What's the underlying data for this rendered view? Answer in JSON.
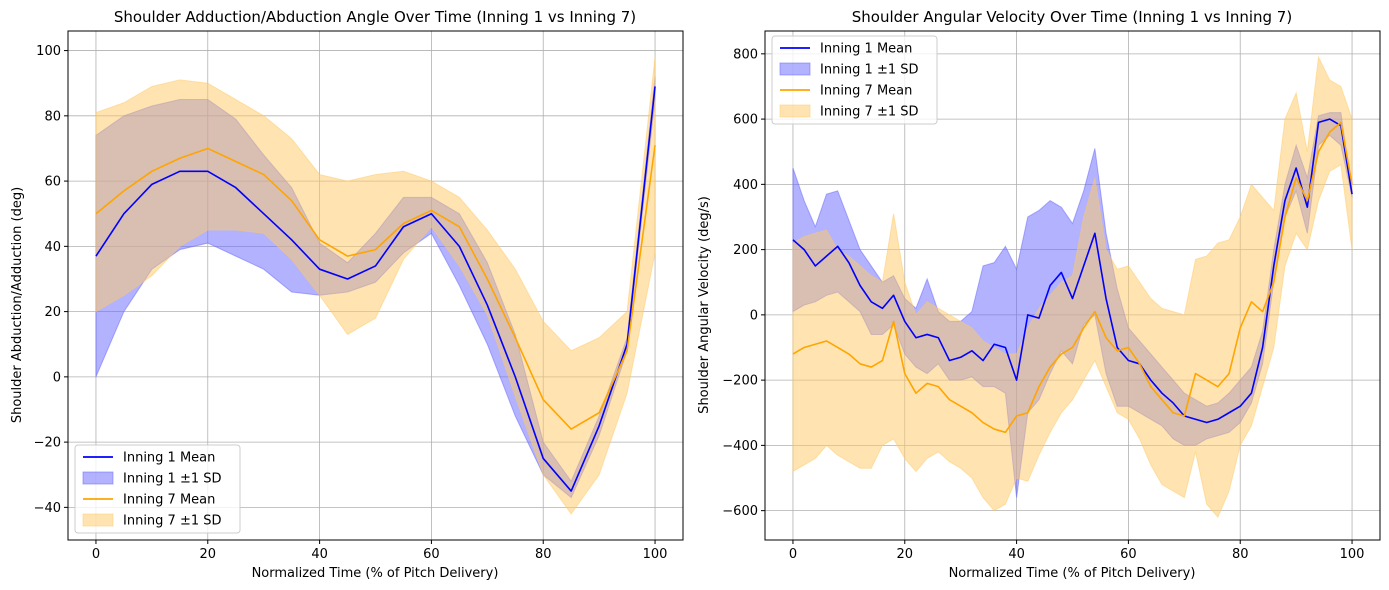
{
  "chart_data": [
    {
      "type": "line",
      "title": "Shoulder Adduction/Abduction Angle Over Time (Inning 1 vs Inning 7)",
      "xlabel": "Normalized Time (% of Pitch Delivery)",
      "ylabel": "Shoulder Abduction/Adduction (deg)",
      "xlim": [
        -5,
        105
      ],
      "ylim": [
        -50,
        106
      ],
      "xticks": [
        0,
        20,
        40,
        60,
        80,
        100
      ],
      "yticks": [
        -40,
        -20,
        0,
        20,
        40,
        60,
        80,
        100
      ],
      "grid": true,
      "legend_position": "lower left",
      "x": [
        0,
        5,
        10,
        15,
        20,
        25,
        30,
        35,
        40,
        45,
        50,
        55,
        60,
        65,
        70,
        75,
        80,
        85,
        90,
        95,
        100
      ],
      "series": [
        {
          "name": "Inning 1 Mean",
          "color": "#0000ff",
          "kind": "line",
          "values": [
            37,
            50,
            59,
            63,
            63,
            58,
            50,
            42,
            33,
            30,
            34,
            46,
            50,
            40,
            22,
            0,
            -25,
            -35,
            -15,
            10,
            89
          ]
        },
        {
          "name": "Inning 1 ±1 SD",
          "color": "#6666ff",
          "kind": "band",
          "lower": [
            0,
            20,
            33,
            39,
            41,
            37,
            33,
            26,
            25,
            26,
            29,
            38,
            44,
            28,
            10,
            -12,
            -30,
            -37,
            -18,
            8,
            85
          ],
          "upper": [
            74,
            80,
            83,
            85,
            85,
            79,
            68,
            58,
            41,
            35,
            44,
            55,
            55,
            50,
            35,
            13,
            -20,
            -32,
            -12,
            12,
            92
          ]
        },
        {
          "name": "Inning 7 Mean",
          "color": "#ffa500",
          "kind": "line",
          "values": [
            50,
            57,
            63,
            67,
            70,
            66,
            62,
            54,
            42,
            37,
            39,
            47,
            51,
            46,
            30,
            12,
            -7,
            -16,
            -11,
            8,
            71
          ]
        },
        {
          "name": "Inning 7 ±1 SD",
          "color": "#ffc966",
          "kind": "band",
          "lower": [
            20,
            25,
            31,
            40,
            45,
            45,
            44,
            36,
            25,
            13,
            18,
            36,
            46,
            34,
            19,
            -6,
            -30,
            -42,
            -30,
            -5,
            38
          ],
          "upper": [
            81,
            84,
            89,
            91,
            90,
            85,
            80,
            73,
            62,
            60,
            62,
            63,
            60,
            55,
            45,
            33,
            17,
            8,
            12,
            20,
            98
          ]
        }
      ]
    },
    {
      "type": "line",
      "title": "Shoulder Angular Velocity Over Time (Inning 1 vs Inning 7)",
      "xlabel": "Normalized Time (% of Pitch Delivery)",
      "ylabel": "Shoulder Angular Velocity (deg/s)",
      "xlim": [
        -5,
        105
      ],
      "ylim": [
        -690,
        870
      ],
      "xticks": [
        0,
        20,
        40,
        60,
        80,
        100
      ],
      "yticks": [
        -600,
        -400,
        -200,
        0,
        200,
        400,
        600,
        800
      ],
      "grid": true,
      "legend_position": "upper left",
      "x": [
        0,
        2,
        4,
        6,
        8,
        10,
        12,
        14,
        16,
        18,
        20,
        22,
        24,
        26,
        28,
        30,
        32,
        34,
        36,
        38,
        40,
        42,
        44,
        46,
        48,
        50,
        52,
        54,
        56,
        58,
        60,
        62,
        64,
        66,
        68,
        70,
        72,
        74,
        76,
        78,
        80,
        82,
        84,
        86,
        88,
        90,
        92,
        94,
        96,
        98,
        100
      ],
      "series": [
        {
          "name": "Inning 1 Mean",
          "color": "#0000ff",
          "kind": "line",
          "values": [
            230,
            200,
            150,
            180,
            210,
            160,
            90,
            40,
            20,
            60,
            -20,
            -70,
            -60,
            -70,
            -140,
            -130,
            -110,
            -140,
            -90,
            -100,
            -200,
            0,
            -10,
            90,
            130,
            50,
            150,
            250,
            50,
            -100,
            -140,
            -150,
            -200,
            -240,
            -270,
            -310,
            -320,
            -330,
            -320,
            -300,
            -280,
            -240,
            -100,
            150,
            350,
            450,
            330,
            590,
            600,
            580,
            370
          ]
        },
        {
          "name": "Inning 1 ±1 SD",
          "color": "#6666ff",
          "kind": "band",
          "lower": [
            10,
            30,
            40,
            60,
            70,
            40,
            10,
            -60,
            -60,
            -30,
            -120,
            -160,
            -180,
            -150,
            -200,
            -200,
            -190,
            -220,
            -220,
            -240,
            -560,
            -300,
            -260,
            -180,
            -110,
            -150,
            -30,
            0,
            -180,
            -280,
            -280,
            -300,
            -320,
            -340,
            -380,
            -400,
            -400,
            -380,
            -370,
            -360,
            -330,
            -270,
            -150,
            100,
            300,
            380,
            250,
            520,
            550,
            520,
            360
          ],
          "upper": [
            450,
            350,
            270,
            370,
            380,
            290,
            200,
            150,
            100,
            120,
            50,
            20,
            110,
            10,
            -20,
            -20,
            10,
            150,
            160,
            210,
            140,
            300,
            320,
            350,
            330,
            280,
            380,
            510,
            250,
            80,
            -40,
            -80,
            -120,
            -160,
            -200,
            -240,
            -260,
            -280,
            -270,
            -240,
            -200,
            -160,
            -50,
            200,
            400,
            520,
            420,
            610,
            620,
            620,
            380
          ]
        },
        {
          "name": "Inning 7 Mean",
          "color": "#ffa500",
          "kind": "line",
          "values": [
            -120,
            -100,
            -90,
            -80,
            -100,
            -120,
            -150,
            -160,
            -140,
            -20,
            -180,
            -240,
            -210,
            -220,
            -260,
            -280,
            -300,
            -330,
            -350,
            -360,
            -310,
            -300,
            -220,
            -160,
            -120,
            -100,
            -40,
            10,
            -70,
            -110,
            -100,
            -150,
            -220,
            -260,
            -300,
            -310,
            -180,
            -200,
            -220,
            -180,
            -40,
            40,
            10,
            100,
            300,
            420,
            350,
            500,
            560,
            590,
            400
          ]
        },
        {
          "name": "Inning 7 ±1 SD",
          "color": "#ffc966",
          "kind": "band",
          "lower": [
            -480,
            -460,
            -440,
            -400,
            -430,
            -450,
            -470,
            -470,
            -400,
            -380,
            -440,
            -480,
            -440,
            -420,
            -450,
            -470,
            -500,
            -560,
            -600,
            -580,
            -500,
            -510,
            -430,
            -360,
            -300,
            -260,
            -200,
            -140,
            -220,
            -300,
            -320,
            -380,
            -460,
            -520,
            -540,
            -560,
            -420,
            -580,
            -620,
            -540,
            -400,
            -340,
            -220,
            -100,
            150,
            250,
            200,
            350,
            440,
            460,
            200
          ],
          "upper": [
            220,
            240,
            250,
            260,
            200,
            180,
            150,
            120,
            100,
            310,
            100,
            0,
            40,
            20,
            0,
            -20,
            -40,
            -80,
            -100,
            -120,
            -120,
            -40,
            20,
            60,
            100,
            120,
            300,
            420,
            200,
            140,
            150,
            100,
            50,
            20,
            10,
            0,
            170,
            180,
            220,
            230,
            300,
            400,
            360,
            320,
            600,
            680,
            500,
            790,
            720,
            700,
            600
          ]
        }
      ]
    }
  ]
}
